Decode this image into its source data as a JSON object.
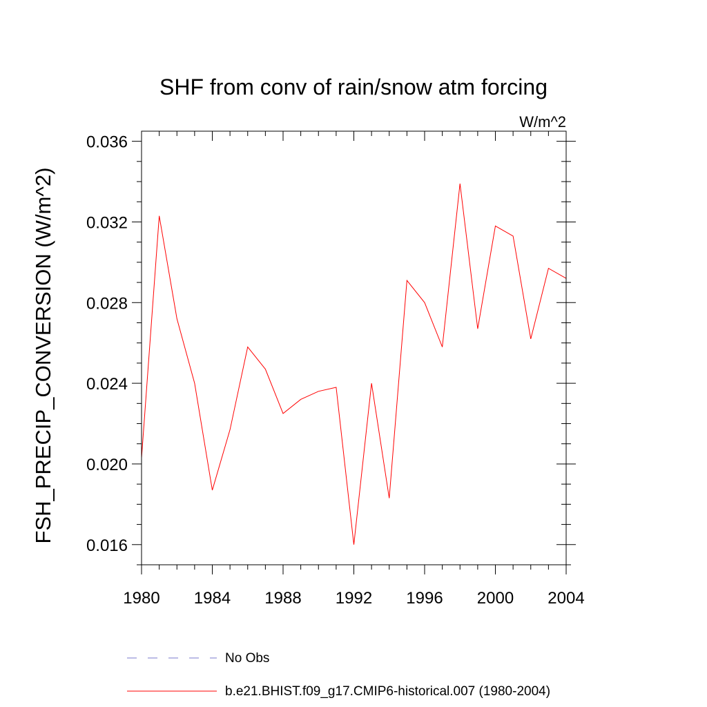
{
  "chart_data": {
    "type": "line",
    "title": "SHF from conv of rain/snow atm forcing",
    "units_label": "W/m^2",
    "ylabel": "FSH_PRECIP_CONVERSION  (W/m^2)",
    "xlabel": "",
    "xlim": [
      1980,
      2004
    ],
    "ylim": [
      0.015,
      0.0365
    ],
    "x_ticks": [
      1980,
      1984,
      1988,
      1992,
      1996,
      2000,
      2004
    ],
    "x_tick_labels": [
      "1980",
      "1984",
      "1988",
      "1992",
      "1996",
      "2000",
      "2004"
    ],
    "y_ticks": [
      0.016,
      0.02,
      0.024,
      0.028,
      0.032,
      0.036
    ],
    "y_tick_labels": [
      "0.016",
      "0.020",
      "0.024",
      "0.028",
      "0.032",
      "0.036"
    ],
    "grid": false,
    "legend_position": "bottom",
    "series": [
      {
        "name": "b.e21.BHIST.f09_g17.CMIP6-historical.007 (1980-2004)",
        "color": "#ff0000",
        "style": "solid",
        "x": [
          1980,
          1981,
          1982,
          1983,
          1984,
          1985,
          1986,
          1987,
          1988,
          1989,
          1990,
          1991,
          1992,
          1993,
          1994,
          1995,
          1996,
          1997,
          1998,
          1999,
          2000,
          2001,
          2002,
          2003,
          2004
        ],
        "values": [
          0.0203,
          0.0323,
          0.0272,
          0.024,
          0.0187,
          0.0217,
          0.0258,
          0.0247,
          0.0225,
          0.0232,
          0.0236,
          0.0238,
          0.016,
          0.024,
          0.0183,
          0.0291,
          0.028,
          0.0258,
          0.0339,
          0.0267,
          0.0318,
          0.0313,
          0.0262,
          0.0297,
          0.0292
        ]
      }
    ],
    "legend_entries": [
      {
        "label": "No Obs",
        "color": "#7777cc",
        "style": "dashed"
      },
      {
        "label": "b.e21.BHIST.f09_g17.CMIP6-historical.007 (1980-2004)",
        "color": "#ff0000",
        "style": "solid"
      }
    ]
  }
}
